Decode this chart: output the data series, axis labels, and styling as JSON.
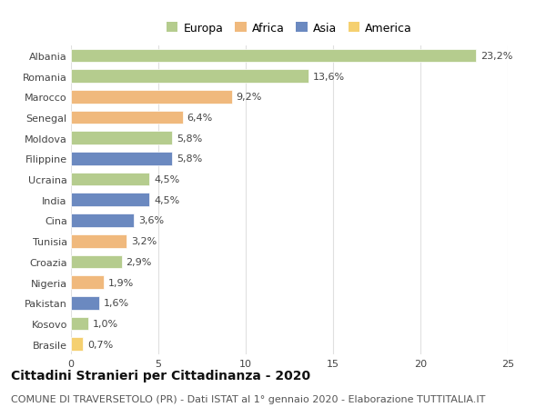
{
  "countries": [
    "Albania",
    "Romania",
    "Marocco",
    "Senegal",
    "Moldova",
    "Filippine",
    "Ucraina",
    "India",
    "Cina",
    "Tunisia",
    "Croazia",
    "Nigeria",
    "Pakistan",
    "Kosovo",
    "Brasile"
  ],
  "values": [
    23.2,
    13.6,
    9.2,
    6.4,
    5.8,
    5.8,
    4.5,
    4.5,
    3.6,
    3.2,
    2.9,
    1.9,
    1.6,
    1.0,
    0.7
  ],
  "continents": [
    "Europa",
    "Europa",
    "Africa",
    "Africa",
    "Europa",
    "Asia",
    "Europa",
    "Asia",
    "Asia",
    "Africa",
    "Europa",
    "Africa",
    "Asia",
    "Europa",
    "America"
  ],
  "colors": {
    "Europa": "#b5cc8e",
    "Africa": "#f0b97d",
    "Asia": "#6b89c0",
    "America": "#f5d070"
  },
  "legend_order": [
    "Europa",
    "Africa",
    "Asia",
    "America"
  ],
  "xlim": [
    0,
    25
  ],
  "xticks": [
    0,
    5,
    10,
    15,
    20,
    25
  ],
  "title": "Cittadini Stranieri per Cittadinanza - 2020",
  "subtitle": "COMUNE DI TRAVERSETOLO (PR) - Dati ISTAT al 1° gennaio 2020 - Elaborazione TUTTITALIA.IT",
  "title_fontsize": 10,
  "subtitle_fontsize": 8,
  "label_fontsize": 8,
  "tick_fontsize": 8,
  "background_color": "#ffffff",
  "grid_color": "#e0e0e0"
}
